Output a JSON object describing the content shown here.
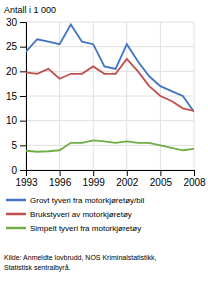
{
  "chart_data": {
    "type": "line",
    "ylabel": "Antall i 1 000",
    "x": [
      1993,
      1994,
      1995,
      1996,
      1997,
      1998,
      1999,
      2000,
      2001,
      2002,
      2003,
      2004,
      2005,
      2006,
      2007,
      2008
    ],
    "series": [
      {
        "name": "Grovt tyveri fra motorkjøretøy/bil",
        "color": "#4472C4",
        "values": [
          24.0,
          26.5,
          26.0,
          25.5,
          29.5,
          26.0,
          25.5,
          21.0,
          20.5,
          25.5,
          22.0,
          19.0,
          17.0,
          16.0,
          15.0,
          11.8
        ]
      },
      {
        "name": "Brukstyveri av motorkjøretøy",
        "color": "#C0504D",
        "values": [
          19.8,
          19.5,
          20.5,
          18.5,
          19.5,
          19.5,
          21.0,
          19.5,
          19.5,
          22.5,
          20.0,
          17.0,
          15.0,
          14.0,
          12.5,
          12.0
        ]
      },
      {
        "name": "Simpelt tyveri fra motorkjøretøy",
        "color": "#70AD47",
        "values": [
          3.9,
          3.7,
          3.8,
          4.0,
          5.5,
          5.5,
          6.0,
          5.8,
          5.5,
          5.8,
          5.5,
          5.5,
          5.0,
          4.5,
          4.0,
          4.3
        ]
      }
    ],
    "xlim": [
      1993,
      2008
    ],
    "xticks": [
      1993,
      1996,
      1999,
      2002,
      2005,
      2008
    ],
    "ylim": [
      0,
      30
    ],
    "yticks": [
      0,
      5,
      10,
      15,
      20,
      25,
      30
    ],
    "grid": true,
    "legend": "bottom",
    "annotations": [
      "Kilde: Anmeldte lovbrudd, NOS Kriminalstatistikk,",
      "Statistisk sentralbyrå."
    ]
  }
}
